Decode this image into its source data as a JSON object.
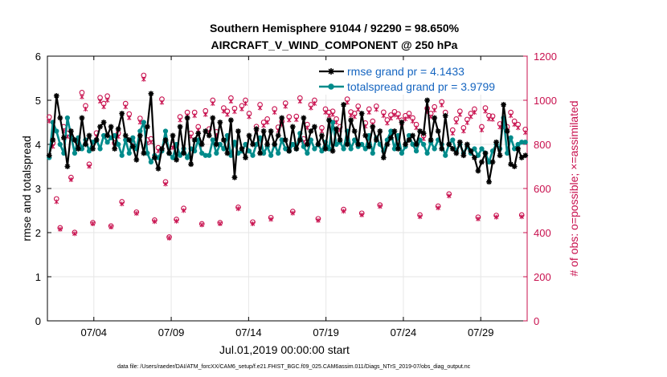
{
  "chart_data": {
    "type": "line",
    "title_line1": "Southern Hemisphere 91044 / 92290 = 98.650%",
    "title_line2": "AIRCRAFT_V_WIND_COMPONENT @ 250 hPa",
    "xlabel": "Jul.01,2019 00:00:00 start",
    "ylabel_left": "rmse and totalspread",
    "ylabel_right": "# of obs: o=possible; ×=assimilated",
    "footer": "data file: /Users/raeder/DAI/ATM_forcXX/CAM6_setup/f.e21.FHIST_BGC.f09_025.CAM6assim.011/Diags_NTrS_2019-07/obs_diag_output.nc",
    "xlim": [
      0,
      124
    ],
    "x_tick_positions": [
      12,
      32,
      52,
      72,
      92,
      112
    ],
    "x_tick_labels": [
      "07/04",
      "07/09",
      "07/14",
      "07/19",
      "07/24",
      "07/29"
    ],
    "ylim_left": [
      0,
      6
    ],
    "yticks_left": [
      "0",
      "1",
      "2",
      "3",
      "4",
      "5",
      "6"
    ],
    "ylim_right": [
      0,
      1200
    ],
    "yticks_right": [
      "0",
      "200",
      "400",
      "600",
      "800",
      "1000",
      "1200"
    ],
    "colors": {
      "rmse": "#000000",
      "spread": "#008b8b",
      "obs": "#c8104e",
      "legend_text": "#1565c0"
    },
    "legend": [
      {
        "name": "rmse",
        "label": "rmse grand pr = 4.1433"
      },
      {
        "name": "totalspread",
        "label": "totalspread grand pr = 3.9799"
      }
    ],
    "series": [
      {
        "name": "rmse",
        "axis": "left",
        "values": [
          3.75,
          4.1,
          5.1,
          4.6,
          4.15,
          3.5,
          4.3,
          4.1,
          3.9,
          4.6,
          4.0,
          4.2,
          3.9,
          4.1,
          4.4,
          4.5,
          4.2,
          4.4,
          3.9,
          4.35,
          4.7,
          4.2,
          4.1,
          3.95,
          3.65,
          4.2,
          3.8,
          4.4,
          5.15,
          3.7,
          3.45,
          3.9,
          4.1,
          3.8,
          4.2,
          3.65,
          4.4,
          3.8,
          4.6,
          3.55,
          4.1,
          4.25,
          4.0,
          4.3,
          4.2,
          4.6,
          4.0,
          4.5,
          4.1,
          3.8,
          4.55,
          3.25,
          4.3,
          3.9,
          3.7,
          4.2,
          4.0,
          4.35,
          3.8,
          4.3,
          4.0,
          4.3,
          4.0,
          4.2,
          4.6,
          4.1,
          3.85,
          4.4,
          3.9,
          4.1,
          4.6,
          4.0,
          4.3,
          4.4,
          4.0,
          4.2,
          3.9,
          4.55,
          3.85,
          4.35,
          4.1,
          4.9,
          4.0,
          4.55,
          4.3,
          4.0,
          4.7,
          4.2,
          3.95,
          4.4,
          4.1,
          4.3,
          3.7,
          4.0,
          4.15,
          4.3,
          3.9,
          4.5,
          4.0,
          4.1,
          4.2,
          4.0,
          4.3,
          4.25,
          5.0,
          4.1,
          4.6,
          4.3,
          3.9,
          4.65,
          4.0,
          3.9,
          3.8,
          4.05,
          3.75,
          4.0,
          3.85,
          3.7,
          3.4,
          3.6,
          3.8,
          3.15,
          3.6,
          4.05,
          3.75,
          4.9,
          4.3,
          3.55,
          3.5,
          3.9,
          3.7,
          3.75
        ]
      },
      {
        "name": "totalspread",
        "axis": "left",
        "values": [
          3.7,
          4.5,
          4.3,
          4.0,
          3.8,
          4.6,
          4.2,
          3.8,
          4.15,
          3.9,
          4.1,
          3.85,
          4.05,
          4.1,
          3.9,
          4.2,
          4.05,
          4.15,
          4.2,
          4.0,
          3.75,
          4.1,
          3.8,
          4.15,
          3.9,
          4.3,
          4.5,
          3.8,
          3.6,
          3.75,
          3.7,
          3.85,
          4.3,
          3.8,
          3.7,
          4.0,
          3.75,
          3.9,
          3.7,
          3.9,
          3.85,
          4.1,
          3.8,
          3.75,
          3.75,
          4.1,
          3.8,
          4.0,
          3.9,
          4.2,
          3.75,
          4.05,
          3.8,
          3.85,
          4.0,
          3.85,
          3.75,
          4.0,
          4.15,
          3.8,
          3.95,
          3.75,
          4.0,
          3.8,
          4.1,
          3.9,
          3.85,
          4.0,
          3.9,
          4.25,
          3.95,
          3.8,
          4.1,
          3.9,
          4.0,
          3.85,
          4.05,
          3.9,
          4.5,
          4.0,
          4.05,
          3.9,
          4.3,
          3.9,
          4.1,
          3.95,
          4.0,
          3.9,
          4.2,
          3.8,
          4.15,
          4.0,
          3.85,
          4.1,
          4.3,
          3.9,
          4.2,
          3.8,
          3.95,
          4.2,
          4.0,
          3.85,
          4.1,
          4.0,
          3.8,
          4.05,
          3.9,
          4.1,
          4.0,
          3.75,
          4.0,
          4.1,
          3.85,
          4.0,
          3.8,
          3.95,
          3.8,
          3.9,
          3.75,
          3.9,
          3.8,
          3.6,
          3.85,
          4.0,
          3.9,
          4.6,
          3.8,
          4.15,
          3.9,
          4.0,
          4.05,
          4.05
        ]
      },
      {
        "name": "obs_possible",
        "axis": "right",
        "marker": "o",
        "values": [
          924,
          807,
          553,
          422,
          880,
          850,
          650,
          401,
          800,
          1035,
          975,
          710,
          445,
          852,
          1012,
          985,
          1019,
          430,
          807,
          851,
          540,
          985,
          938,
          810,
          493,
          918,
          1113,
          820,
          825,
          457,
          785,
          1005,
          630,
          380,
          800,
          460,
          925,
          510,
          945,
          850,
          945,
          880,
          440,
          952,
          870,
          1000,
          857,
          445,
          965,
          950,
          1010,
          963,
          515,
          975,
          1000,
          940,
          448,
          881,
          980,
          900,
          915,
          468,
          961,
          878,
          904,
          987,
          925,
          496,
          927,
          1010,
          825,
          890,
          980,
          1000,
          463,
          875,
          960,
          945,
          950,
          915,
          880,
          505,
          1005,
          947,
          940,
          973,
          488,
          897,
          960,
          905,
          973,
          525,
          946,
          911,
          933,
          948,
          938,
          910,
          930,
          940,
          920,
          890,
          480,
          840,
          963,
          940,
          970,
          520,
          993,
          945,
          575,
          865,
          915,
          950,
          875,
          913,
          940,
          960,
          470,
          880,
          965,
          930,
          928,
          478,
          893,
          895,
          880,
          945,
          905,
          890,
          480,
          868
        ]
      },
      {
        "name": "obs_assimilated",
        "axis": "right",
        "marker": "x",
        "values": [
          905,
          790,
          540,
          415,
          860,
          835,
          640,
          395,
          780,
          1015,
          960,
          700,
          440,
          835,
          995,
          970,
          1000,
          425,
          790,
          835,
          530,
          970,
          920,
          795,
          487,
          900,
          1095,
          805,
          810,
          450,
          770,
          990,
          620,
          375,
          785,
          452,
          910,
          500,
          930,
          835,
          930,
          865,
          435,
          935,
          855,
          985,
          840,
          440,
          950,
          935,
          995,
          948,
          508,
          960,
          985,
          925,
          440,
          866,
          965,
          885,
          900,
          460,
          945,
          862,
          889,
          972,
          910,
          488,
          912,
          995,
          810,
          875,
          965,
          985,
          455,
          860,
          945,
          930,
          935,
          900,
          865,
          497,
          990,
          932,
          925,
          958,
          480,
          882,
          945,
          890,
          958,
          518,
          930,
          896,
          918,
          933,
          923,
          895,
          915,
          925,
          905,
          875,
          472,
          825,
          948,
          925,
          955,
          512,
          978,
          930,
          566,
          850,
          900,
          935,
          860,
          898,
          925,
          945,
          462,
          865,
          950,
          915,
          913,
          470,
          878,
          880,
          865,
          930,
          890,
          875,
          472,
          853
        ]
      }
    ]
  }
}
